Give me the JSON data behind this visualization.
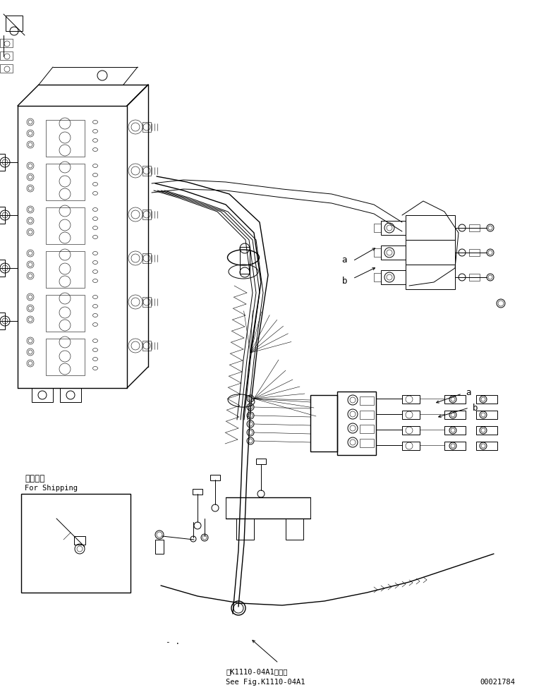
{
  "bg_color": "#ffffff",
  "line_color": "#000000",
  "fig_width": 7.57,
  "fig_height": 9.88,
  "dpi": 100,
  "bottom_text_1": "第K1110-04A1図参照",
  "bottom_text_2": "See Fig.K1110-04A1",
  "doc_number": "00021784",
  "shipping_label_jp": "運携部品",
  "shipping_label_en": "For Shipping",
  "label_a1": "a",
  "label_b1": "b",
  "label_a2": "a",
  "label_b2": "b",
  "dash_label": "- ."
}
